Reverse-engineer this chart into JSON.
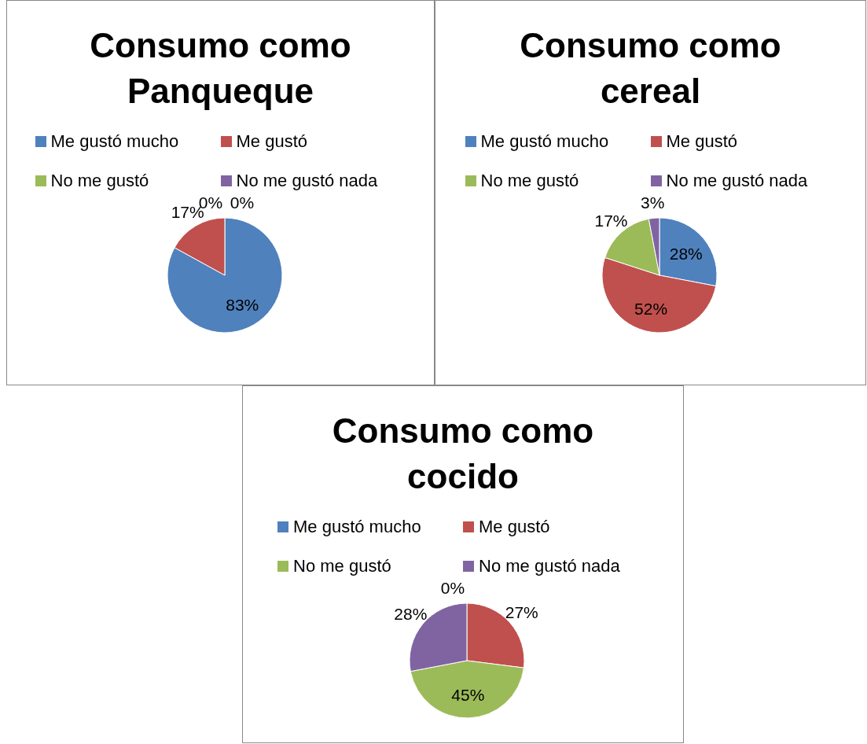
{
  "chart_data": [
    {
      "type": "pie",
      "title": "Consumo como Panqueque",
      "categories": [
        "Me gustó mucho",
        "Me gustó",
        "No me gustó",
        "No me gustó nada"
      ],
      "values": [
        83,
        17,
        0,
        0
      ],
      "value_labels": [
        "83%",
        "17%",
        "0%",
        "0%"
      ],
      "colors": [
        "#4f81bd",
        "#c0504d",
        "#9bbb59",
        "#8064a2"
      ],
      "legend": "top"
    },
    {
      "type": "pie",
      "title": "Consumo como cereal",
      "categories": [
        "Me gustó mucho",
        "Me gustó",
        "No me gustó",
        "No me gustó nada"
      ],
      "values": [
        28,
        52,
        17,
        3
      ],
      "value_labels": [
        "28%",
        "52%",
        "17%",
        "3%"
      ],
      "colors": [
        "#4f81bd",
        "#c0504d",
        "#9bbb59",
        "#8064a2"
      ],
      "legend": "top"
    },
    {
      "type": "pie",
      "title": "Consumo como cocido",
      "categories": [
        "Me gustó mucho",
        "Me gustó",
        "No me gustó",
        "No me gustó nada"
      ],
      "values": [
        0,
        27,
        45,
        28
      ],
      "value_labels": [
        "0%",
        "27%",
        "45%",
        "28%"
      ],
      "colors": [
        "#4f81bd",
        "#c0504d",
        "#9bbb59",
        "#8064a2"
      ],
      "legend": "top"
    }
  ]
}
